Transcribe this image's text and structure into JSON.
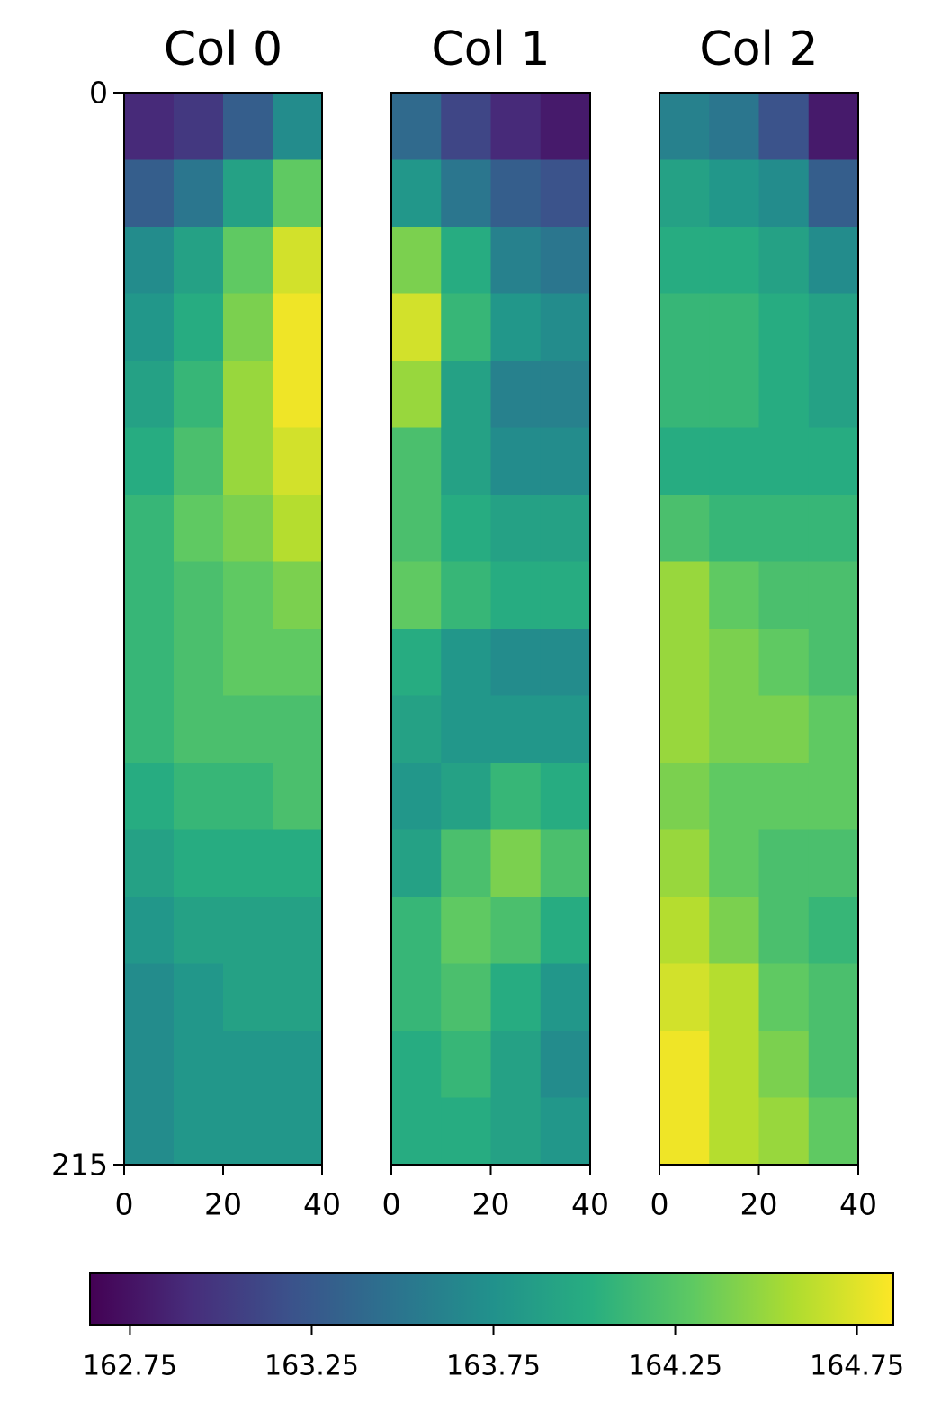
{
  "chart_data": [
    {
      "type": "heatmap",
      "title": "Col 0",
      "colormap": "viridis",
      "xlim": [
        0,
        40
      ],
      "xticks": [
        0,
        20,
        40
      ],
      "ylim": [
        0,
        215
      ],
      "yticks": [
        0,
        215
      ],
      "values": [
        [
          162.9,
          163.0,
          163.3,
          163.7
        ],
        [
          163.3,
          163.5,
          163.9,
          164.3
        ],
        [
          163.7,
          163.9,
          164.3,
          164.7
        ],
        [
          163.8,
          164.0,
          164.4,
          164.8
        ],
        [
          163.9,
          164.1,
          164.5,
          164.8
        ],
        [
          164.0,
          164.2,
          164.5,
          164.7
        ],
        [
          164.1,
          164.3,
          164.4,
          164.6
        ],
        [
          164.1,
          164.2,
          164.3,
          164.4
        ],
        [
          164.1,
          164.2,
          164.3,
          164.3
        ],
        [
          164.1,
          164.2,
          164.2,
          164.2
        ],
        [
          164.0,
          164.1,
          164.1,
          164.2
        ],
        [
          163.9,
          164.0,
          164.0,
          164.0
        ],
        [
          163.8,
          163.9,
          163.9,
          163.9
        ],
        [
          163.7,
          163.8,
          163.9,
          163.9
        ],
        [
          163.7,
          163.8,
          163.8,
          163.8
        ],
        [
          163.7,
          163.8,
          163.8,
          163.8
        ]
      ]
    },
    {
      "type": "heatmap",
      "title": "Col 1",
      "colormap": "viridis",
      "xlim": [
        0,
        40
      ],
      "xticks": [
        0,
        20,
        40
      ],
      "ylim": [
        0,
        215
      ],
      "values": [
        [
          163.4,
          163.1,
          162.9,
          162.8
        ],
        [
          163.8,
          163.5,
          163.3,
          163.2
        ],
        [
          164.4,
          164.0,
          163.6,
          163.5
        ],
        [
          164.7,
          164.1,
          163.8,
          163.7
        ],
        [
          164.5,
          163.9,
          163.6,
          163.6
        ],
        [
          164.2,
          163.9,
          163.7,
          163.7
        ],
        [
          164.2,
          164.0,
          163.9,
          163.9
        ],
        [
          164.3,
          164.1,
          164.0,
          164.0
        ],
        [
          164.0,
          163.8,
          163.7,
          163.7
        ],
        [
          163.9,
          163.8,
          163.8,
          163.8
        ],
        [
          163.8,
          163.9,
          164.1,
          164.0
        ],
        [
          163.9,
          164.2,
          164.4,
          164.2
        ],
        [
          164.1,
          164.3,
          164.2,
          164.0
        ],
        [
          164.1,
          164.2,
          164.0,
          163.8
        ],
        [
          164.0,
          164.1,
          163.9,
          163.7
        ],
        [
          164.0,
          164.0,
          163.9,
          163.8
        ]
      ]
    },
    {
      "type": "heatmap",
      "title": "Col 2",
      "colormap": "viridis",
      "xlim": [
        0,
        40
      ],
      "xticks": [
        0,
        20,
        40
      ],
      "ylim": [
        0,
        215
      ],
      "values": [
        [
          163.6,
          163.5,
          163.2,
          162.8
        ],
        [
          163.9,
          163.8,
          163.7,
          163.3
        ],
        [
          164.0,
          164.0,
          163.9,
          163.7
        ],
        [
          164.1,
          164.1,
          164.0,
          163.9
        ],
        [
          164.1,
          164.1,
          164.0,
          163.9
        ],
        [
          164.0,
          164.0,
          164.0,
          164.0
        ],
        [
          164.2,
          164.1,
          164.1,
          164.1
        ],
        [
          164.5,
          164.3,
          164.2,
          164.2
        ],
        [
          164.5,
          164.4,
          164.3,
          164.2
        ],
        [
          164.5,
          164.4,
          164.4,
          164.3
        ],
        [
          164.4,
          164.3,
          164.3,
          164.3
        ],
        [
          164.5,
          164.3,
          164.2,
          164.2
        ],
        [
          164.6,
          164.4,
          164.2,
          164.1
        ],
        [
          164.7,
          164.6,
          164.3,
          164.2
        ],
        [
          164.8,
          164.6,
          164.4,
          164.2
        ],
        [
          164.8,
          164.6,
          164.5,
          164.3
        ]
      ]
    },
    {
      "type": "colorbar",
      "colormap": "viridis",
      "lim": [
        162.64,
        164.85
      ],
      "ticks": [
        162.75,
        163.25,
        163.75,
        164.25,
        164.75
      ]
    }
  ]
}
